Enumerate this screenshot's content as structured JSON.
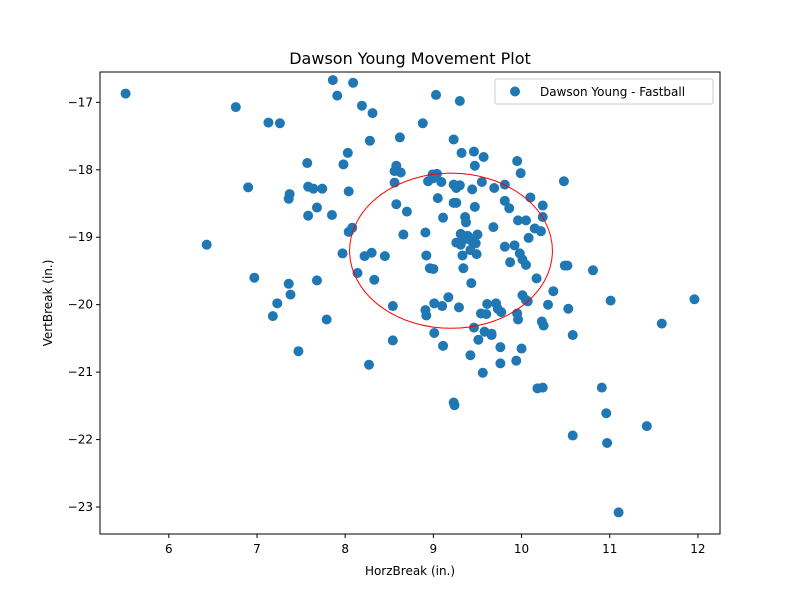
{
  "chart_data": {
    "type": "scatter",
    "title": "Dawson Young Movement Plot",
    "xlabel": "HorzBreak (in.)",
    "ylabel": "VertBreak (in.)",
    "xlim": [
      5.22,
      12.25
    ],
    "ylim": [
      -23.4,
      -16.55
    ],
    "xticks": [
      6,
      7,
      8,
      9,
      10,
      11,
      12
    ],
    "yticks": [
      -17,
      -18,
      -19,
      -20,
      -21,
      -22,
      -23
    ],
    "xtick_labels": [
      "6",
      "7",
      "8",
      "9",
      "10",
      "11",
      "12"
    ],
    "ytick_labels": [
      "−17",
      "−18",
      "−19",
      "−20",
      "−21",
      "−22",
      "−23"
    ],
    "legend_position": "upper right",
    "series": [
      {
        "name": "Dawson Young - Fastball",
        "color": "#1f77b4",
        "points": [
          [
            5.51,
            -16.87
          ],
          [
            6.76,
            -17.07
          ],
          [
            7.13,
            -17.3
          ],
          [
            7.26,
            -17.31
          ],
          [
            6.9,
            -18.26
          ],
          [
            6.43,
            -19.11
          ],
          [
            6.97,
            -19.6
          ],
          [
            7.37,
            -18.36
          ],
          [
            7.36,
            -18.43
          ],
          [
            7.57,
            -17.9
          ],
          [
            7.58,
            -18.25
          ],
          [
            7.64,
            -18.28
          ],
          [
            7.74,
            -18.28
          ],
          [
            7.58,
            -18.68
          ],
          [
            7.68,
            -18.56
          ],
          [
            7.36,
            -19.69
          ],
          [
            7.38,
            -19.85
          ],
          [
            7.23,
            -19.98
          ],
          [
            7.18,
            -20.17
          ],
          [
            7.68,
            -19.64
          ],
          [
            7.79,
            -20.22
          ],
          [
            7.47,
            -20.69
          ],
          [
            7.86,
            -16.67
          ],
          [
            7.91,
            -16.9
          ],
          [
            8.09,
            -16.71
          ],
          [
            8.19,
            -17.05
          ],
          [
            8.31,
            -17.16
          ],
          [
            8.28,
            -17.57
          ],
          [
            7.98,
            -17.92
          ],
          [
            8.03,
            -17.75
          ],
          [
            8.04,
            -18.32
          ],
          [
            7.85,
            -18.67
          ],
          [
            8.04,
            -18.92
          ],
          [
            8.08,
            -18.86
          ],
          [
            7.97,
            -19.24
          ],
          [
            8.14,
            -19.53
          ],
          [
            8.22,
            -19.28
          ],
          [
            8.3,
            -19.23
          ],
          [
            8.45,
            -19.28
          ],
          [
            8.33,
            -19.63
          ],
          [
            8.54,
            -20.02
          ],
          [
            8.54,
            -20.53
          ],
          [
            8.27,
            -20.89
          ],
          [
            8.56,
            -18.19
          ],
          [
            8.58,
            -17.94
          ],
          [
            8.63,
            -18.04
          ],
          [
            8.56,
            -18.02
          ],
          [
            8.62,
            -17.52
          ],
          [
            8.88,
            -17.31
          ],
          [
            9.03,
            -16.89
          ],
          [
            9.3,
            -16.98
          ],
          [
            9.23,
            -17.55
          ],
          [
            9.32,
            -17.75
          ],
          [
            9.46,
            -17.73
          ],
          [
            9.57,
            -17.81
          ],
          [
            9.47,
            -17.94
          ],
          [
            8.99,
            -18.07
          ],
          [
            9.04,
            -18.06
          ],
          [
            8.94,
            -18.17
          ],
          [
            8.99,
            -18.13
          ],
          [
            9.09,
            -18.18
          ],
          [
            9.23,
            -18.22
          ],
          [
            9.26,
            -18.27
          ],
          [
            9.3,
            -18.23
          ],
          [
            9.44,
            -18.29
          ],
          [
            9.55,
            -18.18
          ],
          [
            9.69,
            -18.27
          ],
          [
            9.81,
            -18.22
          ],
          [
            9.95,
            -17.87
          ],
          [
            9.99,
            -18.05
          ],
          [
            8.58,
            -18.51
          ],
          [
            8.7,
            -18.62
          ],
          [
            8.66,
            -18.96
          ],
          [
            9.05,
            -18.42
          ],
          [
            9.23,
            -18.49
          ],
          [
            9.26,
            -18.49
          ],
          [
            9.47,
            -18.55
          ],
          [
            9.81,
            -18.46
          ],
          [
            9.86,
            -18.57
          ],
          [
            10.1,
            -18.41
          ],
          [
            10.24,
            -18.53
          ],
          [
            10.24,
            -18.7
          ],
          [
            9.11,
            -18.71
          ],
          [
            9.36,
            -18.7
          ],
          [
            9.37,
            -18.78
          ],
          [
            9.68,
            -18.85
          ],
          [
            9.96,
            -18.75
          ],
          [
            10.05,
            -18.75
          ],
          [
            10.15,
            -18.87
          ],
          [
            10.22,
            -18.91
          ],
          [
            8.91,
            -18.93
          ],
          [
            9.31,
            -18.95
          ],
          [
            9.34,
            -18.98
          ],
          [
            9.39,
            -18.98
          ],
          [
            9.5,
            -18.96
          ],
          [
            9.35,
            -19.03
          ],
          [
            9.43,
            -19.05
          ],
          [
            9.26,
            -19.08
          ],
          [
            9.31,
            -19.11
          ],
          [
            9.48,
            -19.09
          ],
          [
            9.81,
            -19.14
          ],
          [
            9.92,
            -19.12
          ],
          [
            10.08,
            -19.01
          ],
          [
            8.92,
            -19.27
          ],
          [
            9.33,
            -19.27
          ],
          [
            9.42,
            -19.19
          ],
          [
            9.49,
            -19.25
          ],
          [
            9.98,
            -19.24
          ],
          [
            10.01,
            -19.33
          ],
          [
            10.05,
            -19.41
          ],
          [
            9.87,
            -19.37
          ],
          [
            10.49,
            -19.42
          ],
          [
            10.52,
            -19.42
          ],
          [
            10.81,
            -19.49
          ],
          [
            8.96,
            -19.46
          ],
          [
            9.0,
            -19.47
          ],
          [
            9.34,
            -19.46
          ],
          [
            9.43,
            -19.68
          ],
          [
            10.17,
            -19.61
          ],
          [
            10.36,
            -19.8
          ],
          [
            10.01,
            -19.86
          ],
          [
            10.05,
            -19.93
          ],
          [
            10.07,
            -19.95
          ],
          [
            10.3,
            -20.0
          ],
          [
            10.53,
            -20.06
          ],
          [
            11.01,
            -19.94
          ],
          [
            11.96,
            -19.92
          ],
          [
            9.01,
            -19.98
          ],
          [
            9.17,
            -19.89
          ],
          [
            9.1,
            -20.02
          ],
          [
            8.91,
            -20.08
          ],
          [
            8.92,
            -20.16
          ],
          [
            9.29,
            -20.04
          ],
          [
            9.54,
            -20.13
          ],
          [
            9.61,
            -19.99
          ],
          [
            9.6,
            -20.14
          ],
          [
            9.71,
            -19.98
          ],
          [
            9.73,
            -20.06
          ],
          [
            9.77,
            -20.11
          ],
          [
            9.95,
            -20.13
          ],
          [
            9.96,
            -20.22
          ],
          [
            10.23,
            -20.25
          ],
          [
            10.25,
            -20.31
          ],
          [
            10.58,
            -20.45
          ],
          [
            11.59,
            -20.28
          ],
          [
            9.01,
            -20.42
          ],
          [
            9.11,
            -20.61
          ],
          [
            9.46,
            -20.34
          ],
          [
            9.58,
            -20.4
          ],
          [
            9.66,
            -20.45
          ],
          [
            9.66,
            -20.43
          ],
          [
            9.51,
            -20.52
          ],
          [
            9.76,
            -20.63
          ],
          [
            10.0,
            -20.65
          ],
          [
            9.42,
            -20.75
          ],
          [
            9.76,
            -20.87
          ],
          [
            9.94,
            -20.83
          ],
          [
            9.56,
            -21.01
          ],
          [
            10.18,
            -21.24
          ],
          [
            10.24,
            -21.23
          ],
          [
            9.23,
            -21.45
          ],
          [
            9.24,
            -21.49
          ],
          [
            10.91,
            -21.23
          ],
          [
            10.96,
            -21.61
          ],
          [
            10.58,
            -21.94
          ],
          [
            10.97,
            -22.05
          ],
          [
            11.42,
            -21.8
          ],
          [
            11.1,
            -23.08
          ],
          [
            10.48,
            -18.17
          ]
        ]
      }
    ],
    "ellipse": {
      "cx": 9.2,
      "cy": -19.2,
      "rx": 1.15,
      "ry": 1.15,
      "color": "#ff0000"
    }
  }
}
